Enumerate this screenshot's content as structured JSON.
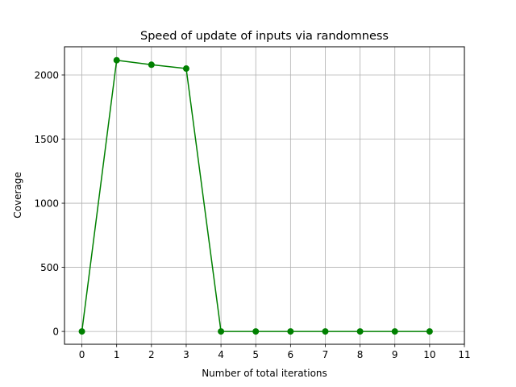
{
  "chart_data": {
    "type": "line",
    "title": "Speed of update of inputs via randomness",
    "xlabel": "Number of total iterations",
    "ylabel": "Coverage",
    "xlim": [
      -0.5,
      11
    ],
    "ylim": [
      -100,
      2220
    ],
    "xticks": [
      0,
      1,
      2,
      3,
      4,
      5,
      6,
      7,
      8,
      9,
      10,
      11
    ],
    "yticks": [
      0,
      500,
      1000,
      1500,
      2000
    ],
    "xtick_labels": [
      "0",
      "1",
      "2",
      "3",
      "4",
      "5",
      "6",
      "7",
      "8",
      "9",
      "10",
      "11"
    ],
    "ytick_labels": [
      "0",
      "500",
      "1000",
      "1500",
      "2000"
    ],
    "grid": true,
    "series": [
      {
        "name": "coverage",
        "color": "#008000",
        "marker": "circle",
        "x": [
          0,
          1,
          2,
          3,
          4,
          5,
          6,
          7,
          8,
          9,
          10
        ],
        "values": [
          0,
          2115,
          2080,
          2050,
          0,
          0,
          0,
          0,
          0,
          0,
          0
        ]
      }
    ]
  },
  "colors": {
    "series": "#008000",
    "grid": "#b0b0b0",
    "axes": "#000000",
    "background": "#ffffff"
  }
}
